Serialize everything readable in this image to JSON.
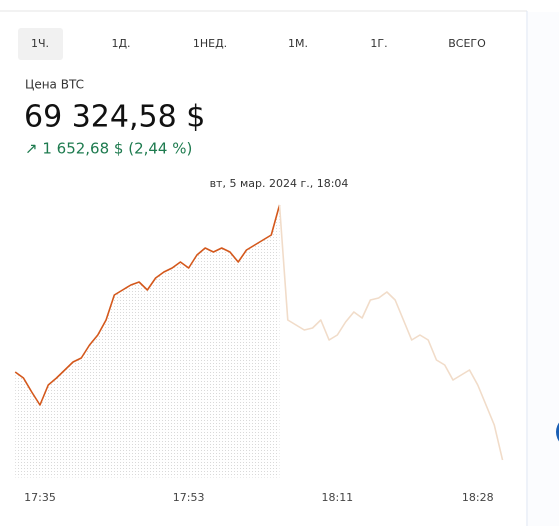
{
  "tabs": [
    "1Ч.",
    "1Д.",
    "1НЕД.",
    "1М.",
    "1Г.",
    "ВСЕГО"
  ],
  "price_label": "Цена BTC",
  "price": "69 324,58 $",
  "change": "↗ 1 652,68 $ (2,44 %)",
  "tooltip": "вт, 5 мар. 2024 г., 18:04",
  "chart_data": {
    "type": "line",
    "categories": [
      null,
      null,
      null,
      "17:35",
      null,
      null,
      null,
      null,
      null,
      null,
      null,
      null,
      null,
      null,
      null,
      null,
      null,
      null,
      null,
      null,
      null,
      "17:53",
      null,
      null,
      null,
      null,
      null,
      null,
      null,
      null,
      null,
      null,
      null,
      null,
      null,
      null,
      null,
      null,
      null,
      "18:11",
      null,
      null,
      null,
      null,
      null,
      null,
      null,
      null,
      null,
      null,
      null,
      null,
      null,
      null,
      null,
      null,
      "18:28",
      null,
      null,
      null
    ],
    "ylim": [
      66600,
      69500
    ],
    "series": [
      {
        "color": "#d4581c",
        "values": [
          67655,
          67595,
          67455,
          67325,
          67525,
          67595,
          67675,
          67755,
          67795,
          67925,
          68025,
          68175,
          68425,
          68475,
          68525,
          68555,
          68475,
          68595,
          68655,
          68695,
          68755,
          68695,
          68825,
          68895,
          68855,
          68895,
          68855,
          68755,
          68875,
          68925,
          68975,
          69025,
          69325,
          null,
          null,
          null,
          null,
          null,
          null,
          null,
          null,
          null,
          null,
          null,
          null,
          null,
          null,
          null,
          null,
          null,
          null,
          null,
          null,
          null,
          null,
          null,
          null,
          null,
          null,
          null
        ]
      },
      {
        "color": "#f1dcc9",
        "values": [
          null,
          null,
          null,
          null,
          null,
          null,
          null,
          null,
          null,
          null,
          null,
          null,
          null,
          null,
          null,
          null,
          null,
          null,
          null,
          null,
          null,
          null,
          null,
          null,
          null,
          null,
          null,
          null,
          null,
          null,
          null,
          null,
          69325,
          68175,
          68125,
          68075,
          68095,
          68175,
          67975,
          68025,
          68155,
          68255,
          68195,
          68375,
          68395,
          68455,
          68375,
          68175,
          67975,
          68025,
          67975,
          67775,
          67725,
          67575,
          67625,
          67675,
          67525,
          67325,
          67125,
          66775
        ]
      }
    ]
  }
}
